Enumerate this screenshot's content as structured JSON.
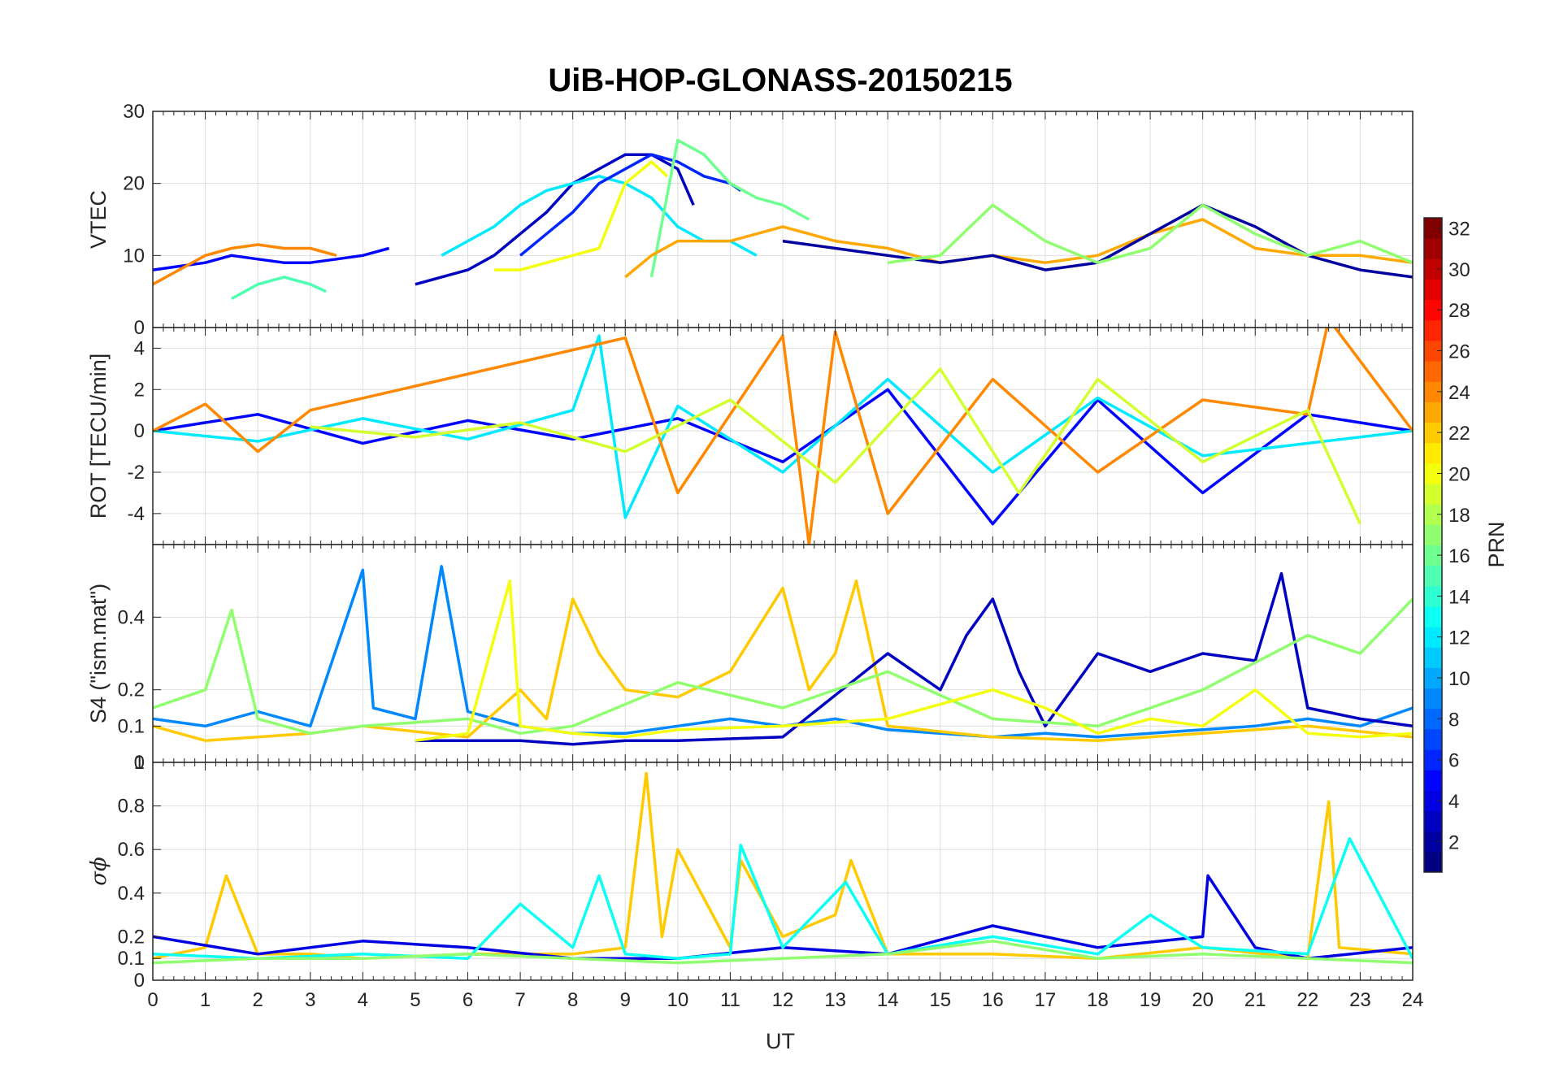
{
  "title": "UiB-HOP-GLONASS-20150215",
  "chart_data": [
    {
      "type": "line",
      "panel": "vtec",
      "ylabel": "VTEC",
      "ylim": [
        0,
        30
      ],
      "yticks": [
        "0",
        "10",
        "20",
        "30"
      ],
      "grid": true,
      "series": [
        {
          "prn": 5,
          "x": [
            0,
            0.5,
            1,
            1.5,
            2,
            2.5,
            3,
            3.5,
            4,
            4.5
          ],
          "values": [
            8,
            8.5,
            9,
            10,
            9.5,
            9,
            9,
            9.5,
            10,
            11
          ]
        },
        {
          "prn": 24,
          "x": [
            0,
            0.5,
            1,
            1.5,
            2,
            2.5,
            3,
            3.5
          ],
          "values": [
            6,
            8,
            10,
            11,
            11.5,
            11,
            11,
            10
          ]
        },
        {
          "prn": 15,
          "x": [
            1.5,
            2,
            2.5,
            3,
            3.3
          ],
          "values": [
            4,
            6,
            7,
            6,
            5
          ]
        },
        {
          "prn": 3,
          "x": [
            5,
            5.5,
            6,
            6.5,
            7,
            7.5,
            8,
            8.5,
            9,
            9.5,
            10,
            10.3
          ],
          "values": [
            6,
            7,
            8,
            10,
            13,
            16,
            20,
            22,
            24,
            24,
            22,
            17
          ]
        },
        {
          "prn": 12,
          "x": [
            5.5,
            6,
            6.5,
            7,
            7.5,
            8,
            8.5,
            9,
            9.5,
            10,
            10.5,
            11,
            11.5
          ],
          "values": [
            10,
            12,
            14,
            17,
            19,
            20,
            21,
            20,
            18,
            14,
            12,
            12,
            10
          ]
        },
        {
          "prn": 6,
          "x": [
            7,
            7.5,
            8,
            8.5,
            9,
            9.5,
            10,
            10.5,
            11,
            11.2
          ],
          "values": [
            10,
            13,
            16,
            20,
            22,
            24,
            23,
            21,
            20,
            19
          ]
        },
        {
          "prn": 20,
          "x": [
            6.5,
            7,
            7.5,
            8,
            8.5,
            9,
            9.5,
            9.8
          ],
          "values": [
            8,
            8,
            9,
            10,
            11,
            20,
            23,
            21
          ]
        },
        {
          "prn": 16,
          "x": [
            9.5,
            10,
            10.5,
            11,
            11.5,
            12,
            12.5
          ],
          "values": [
            7,
            26,
            24,
            20,
            18,
            17,
            15
          ]
        },
        {
          "prn": 23,
          "x": [
            9,
            9.5,
            10,
            11,
            12,
            12.5,
            13,
            14,
            15,
            16,
            17,
            18,
            19,
            20,
            21,
            22,
            23,
            24
          ],
          "values": [
            7,
            10,
            12,
            12,
            14,
            13,
            12,
            11,
            9,
            10,
            9,
            10,
            13,
            15,
            11,
            10,
            10,
            9
          ]
        },
        {
          "prn": 2,
          "x": [
            12,
            13,
            14,
            15,
            16,
            17,
            18,
            19,
            20,
            21,
            22,
            23,
            24
          ],
          "values": [
            12,
            11,
            10,
            9,
            10,
            8,
            9,
            13,
            17,
            14,
            10,
            8,
            7
          ]
        },
        {
          "prn": 17,
          "x": [
            14,
            15,
            16,
            17,
            18,
            19,
            20,
            21,
            22,
            23,
            24
          ],
          "values": [
            9,
            10,
            17,
            12,
            9,
            11,
            17,
            13,
            10,
            12,
            9
          ]
        }
      ]
    },
    {
      "type": "line",
      "panel": "rot",
      "ylabel": "ROT [TECU/min]",
      "ylim": [
        -5.5,
        5
      ],
      "yticks": [
        "-4",
        "-2",
        "0",
        "2",
        "4"
      ],
      "grid": true,
      "series": [
        {
          "prn": 5,
          "x": [
            0,
            2,
            4,
            6,
            8,
            10,
            12,
            14,
            16,
            18,
            20,
            22,
            24
          ],
          "values": [
            0,
            0.8,
            -0.6,
            0.5,
            -0.4,
            0.6,
            -1.5,
            2,
            -4.5,
            1.5,
            -3,
            0.8,
            0
          ]
        },
        {
          "prn": 12,
          "x": [
            0,
            2,
            4,
            6,
            8,
            8.5,
            9,
            10,
            12,
            14,
            16,
            18,
            20,
            22,
            24
          ],
          "values": [
            0,
            -0.5,
            0.6,
            -0.4,
            1,
            4.6,
            -4.2,
            1.2,
            -2,
            2.5,
            -2,
            1.6,
            -1.2,
            -0.6,
            0
          ]
        },
        {
          "prn": 24,
          "x": [
            0,
            1,
            2,
            3,
            9,
            10,
            12,
            12.5,
            13,
            14,
            16,
            18,
            20,
            22,
            22.4,
            24
          ],
          "values": [
            0,
            1.3,
            -1,
            1,
            4.5,
            -3,
            4.6,
            -5.5,
            4.8,
            -4,
            2.5,
            -2,
            1.5,
            0.8,
            5.4,
            0
          ]
        },
        {
          "prn": 19,
          "x": [
            3,
            5,
            7,
            9,
            11,
            13,
            15,
            16.5,
            18,
            20,
            22,
            23
          ],
          "values": [
            0.2,
            -0.3,
            0.4,
            -1,
            1.5,
            -2.5,
            3,
            -3,
            2.5,
            -1.5,
            1,
            -4.5
          ]
        }
      ]
    },
    {
      "type": "line",
      "panel": "s4",
      "ylabel": "S4 (\"ism.mat\")",
      "ylim": [
        0,
        0.6
      ],
      "yticks": [
        "0",
        "0.1",
        "0.2",
        "0.4"
      ],
      "grid": true,
      "series": [
        {
          "prn": 9,
          "x": [
            0,
            1,
            2,
            3,
            4,
            4.2,
            5,
            5.5,
            6,
            7,
            8,
            9,
            10,
            11,
            12,
            13,
            14,
            15,
            16,
            17,
            18,
            19,
            20,
            21,
            22,
            23,
            24
          ],
          "values": [
            0.12,
            0.1,
            0.14,
            0.1,
            0.53,
            0.15,
            0.12,
            0.54,
            0.14,
            0.1,
            0.08,
            0.08,
            0.1,
            0.12,
            0.1,
            0.12,
            0.09,
            0.08,
            0.07,
            0.08,
            0.07,
            0.08,
            0.09,
            0.1,
            0.12,
            0.1,
            0.15
          ]
        },
        {
          "prn": 22,
          "x": [
            0,
            1,
            2,
            3,
            4,
            6,
            7,
            7.5,
            8,
            8.5,
            9,
            10,
            11,
            12,
            12.5,
            13,
            13.4,
            14,
            16,
            18,
            20,
            22,
            24
          ],
          "values": [
            0.1,
            0.06,
            0.07,
            0.08,
            0.1,
            0.07,
            0.2,
            0.12,
            0.45,
            0.3,
            0.2,
            0.18,
            0.25,
            0.48,
            0.2,
            0.3,
            0.5,
            0.1,
            0.07,
            0.06,
            0.08,
            0.1,
            0.07
          ]
        },
        {
          "prn": 3,
          "x": [
            5,
            7,
            8,
            9,
            10,
            12,
            14,
            15,
            15.5,
            16,
            16.5,
            17,
            18,
            19,
            20,
            21,
            21.5,
            22,
            23,
            24
          ],
          "values": [
            0.06,
            0.06,
            0.05,
            0.06,
            0.06,
            0.07,
            0.3,
            0.2,
            0.35,
            0.45,
            0.25,
            0.1,
            0.3,
            0.25,
            0.3,
            0.28,
            0.52,
            0.15,
            0.12,
            0.1
          ]
        },
        {
          "prn": 17,
          "x": [
            0,
            1,
            1.5,
            2,
            3,
            4,
            6,
            7,
            8,
            10,
            12,
            14,
            16,
            18,
            20,
            22,
            23,
            24
          ],
          "values": [
            0.15,
            0.2,
            0.42,
            0.12,
            0.08,
            0.1,
            0.12,
            0.08,
            0.1,
            0.22,
            0.15,
            0.25,
            0.12,
            0.1,
            0.2,
            0.35,
            0.3,
            0.45
          ]
        },
        {
          "prn": 20,
          "x": [
            5,
            6,
            6.8,
            7,
            8,
            9,
            10,
            12,
            14,
            16,
            17,
            18,
            19,
            20,
            21,
            22,
            23,
            24
          ],
          "values": [
            0.06,
            0.08,
            0.5,
            0.1,
            0.08,
            0.07,
            0.09,
            0.1,
            0.12,
            0.2,
            0.15,
            0.08,
            0.12,
            0.1,
            0.2,
            0.08,
            0.07,
            0.08
          ]
        }
      ]
    },
    {
      "type": "line",
      "panel": "sigma",
      "ylabel": "σϕ",
      "ylim": [
        0,
        1
      ],
      "yticks": [
        "0",
        "0.1",
        "0.2",
        "0.4",
        "0.6",
        "0.8",
        "1"
      ],
      "xlabel": "UT",
      "xlim": [
        0,
        24
      ],
      "xticks": [
        "0",
        "1",
        "2",
        "3",
        "4",
        "5",
        "6",
        "7",
        "8",
        "9",
        "10",
        "11",
        "12",
        "13",
        "14",
        "15",
        "16",
        "17",
        "18",
        "19",
        "20",
        "21",
        "22",
        "23",
        "24"
      ],
      "grid": true,
      "series": [
        {
          "prn": 22,
          "x": [
            0,
            1,
            1.4,
            2,
            3,
            4,
            6,
            8,
            9,
            9.4,
            9.7,
            10,
            11,
            11.2,
            12,
            13,
            13.3,
            14,
            16,
            18,
            20,
            22,
            22.4,
            22.6,
            24
          ],
          "values": [
            0.1,
            0.15,
            0.48,
            0.12,
            0.12,
            0.1,
            0.12,
            0.12,
            0.15,
            0.95,
            0.2,
            0.6,
            0.15,
            0.55,
            0.2,
            0.3,
            0.55,
            0.12,
            0.12,
            0.1,
            0.15,
            0.1,
            0.82,
            0.15,
            0.12
          ]
        },
        {
          "prn": 4,
          "x": [
            0,
            2,
            4,
            6,
            8,
            10,
            12,
            14,
            16,
            18,
            20,
            20.1,
            21,
            22,
            24
          ],
          "values": [
            0.2,
            0.12,
            0.18,
            0.15,
            0.1,
            0.1,
            0.15,
            0.12,
            0.25,
            0.15,
            0.2,
            0.48,
            0.15,
            0.1,
            0.15
          ]
        },
        {
          "prn": 13,
          "x": [
            0,
            2,
            4,
            6,
            7,
            8,
            8.5,
            9,
            10,
            11,
            11.2,
            12,
            13.2,
            14,
            16,
            18,
            19,
            20,
            22,
            22.8,
            24
          ],
          "values": [
            0.12,
            0.1,
            0.12,
            0.1,
            0.35,
            0.15,
            0.48,
            0.12,
            0.1,
            0.12,
            0.62,
            0.15,
            0.45,
            0.12,
            0.2,
            0.12,
            0.3,
            0.15,
            0.12,
            0.65,
            0.1
          ]
        },
        {
          "prn": 17,
          "x": [
            0,
            2,
            4,
            6,
            8,
            10,
            12,
            14,
            16,
            18,
            20,
            22,
            24
          ],
          "values": [
            0.08,
            0.1,
            0.1,
            0.12,
            0.1,
            0.08,
            0.1,
            0.12,
            0.18,
            0.1,
            0.12,
            0.1,
            0.08
          ]
        }
      ]
    }
  ],
  "colorbar": {
    "label": "PRN",
    "range": [
      1,
      32
    ],
    "ticks": [
      "2",
      "4",
      "6",
      "8",
      "10",
      "12",
      "14",
      "16",
      "18",
      "20",
      "22",
      "24",
      "26",
      "28",
      "30",
      "32"
    ]
  }
}
